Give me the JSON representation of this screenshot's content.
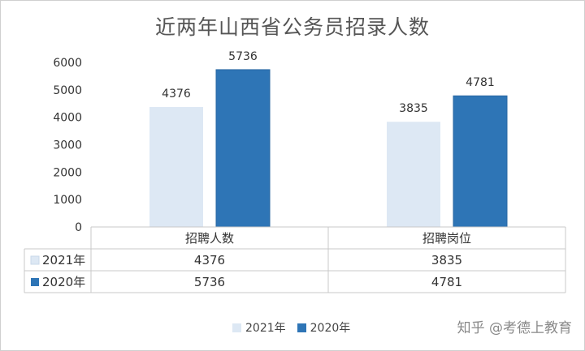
{
  "chart_data": {
    "type": "bar",
    "title": "近两年山西省公务员招录人数",
    "categories": [
      "招聘人数",
      "招聘岗位"
    ],
    "series": [
      {
        "name": "2021年",
        "values": [
          4376,
          3835
        ],
        "color": "#dde8f4"
      },
      {
        "name": "2020年",
        "values": [
          5736,
          4781
        ],
        "color": "#2e75b6"
      }
    ],
    "ylim": [
      0,
      6000
    ],
    "yticks": [
      0,
      1000,
      2000,
      3000,
      4000,
      5000,
      6000
    ],
    "data_labels": true,
    "data_table": true,
    "legend": "bottom",
    "grid": false
  },
  "watermark": "知乎 @考德上教育"
}
